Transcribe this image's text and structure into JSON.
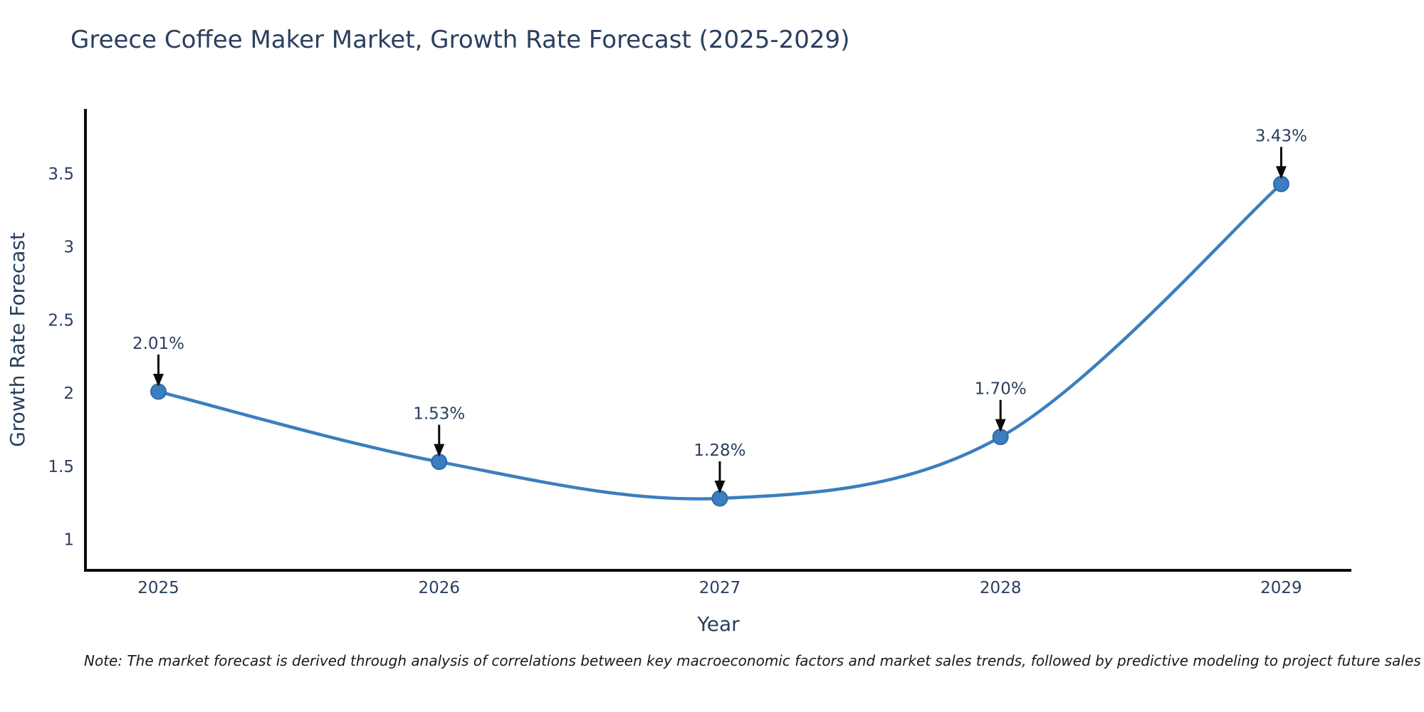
{
  "chart": {
    "title": "Greece Coffee Maker Market, Growth Rate Forecast (2025-2029)",
    "note": "Note: The market forecast is derived through analysis of correlations between key macroeconomic factors and market sales trends, followed by predictive modeling to project future sales"
  },
  "chart_data": {
    "type": "line",
    "title": "Greece Coffee Maker Market, Growth Rate Forecast (2025-2029)",
    "x": [
      2025,
      2026,
      2027,
      2028,
      2029
    ],
    "x_tick_labels": [
      "2025",
      "2026",
      "2027",
      "2028",
      "2029"
    ],
    "series": [
      {
        "name": "Growth Rate Forecast",
        "values": [
          2.01,
          1.53,
          1.28,
          1.7,
          3.43
        ],
        "point_labels": [
          "2.01%",
          "1.53%",
          "1.28%",
          "1.70%",
          "3.43%"
        ]
      }
    ],
    "xlabel": "Year",
    "ylabel": "Growth Rate Forecast",
    "yticks": [
      1,
      1.5,
      2,
      2.5,
      3,
      3.5
    ],
    "ytick_labels": [
      "1",
      "1.5",
      "2",
      "2.5",
      "3",
      "3.5"
    ],
    "ylim": [
      0.788,
      3.943
    ],
    "xlim": [
      2024.74,
      2029.25
    ],
    "line_shape": "spline",
    "grid": false,
    "legend_position": "none",
    "annotations_have_arrows": true,
    "colors": {
      "line": "#3c7ebf",
      "marker_fill": "#3c7ebf",
      "marker_edge": "#2e6ba8",
      "arrow": "#0a0a0a",
      "axis_line": "#0a0a0a",
      "text": "#2a3f5f",
      "note_text": "#1a1a1a",
      "background": "#ffffff"
    }
  }
}
